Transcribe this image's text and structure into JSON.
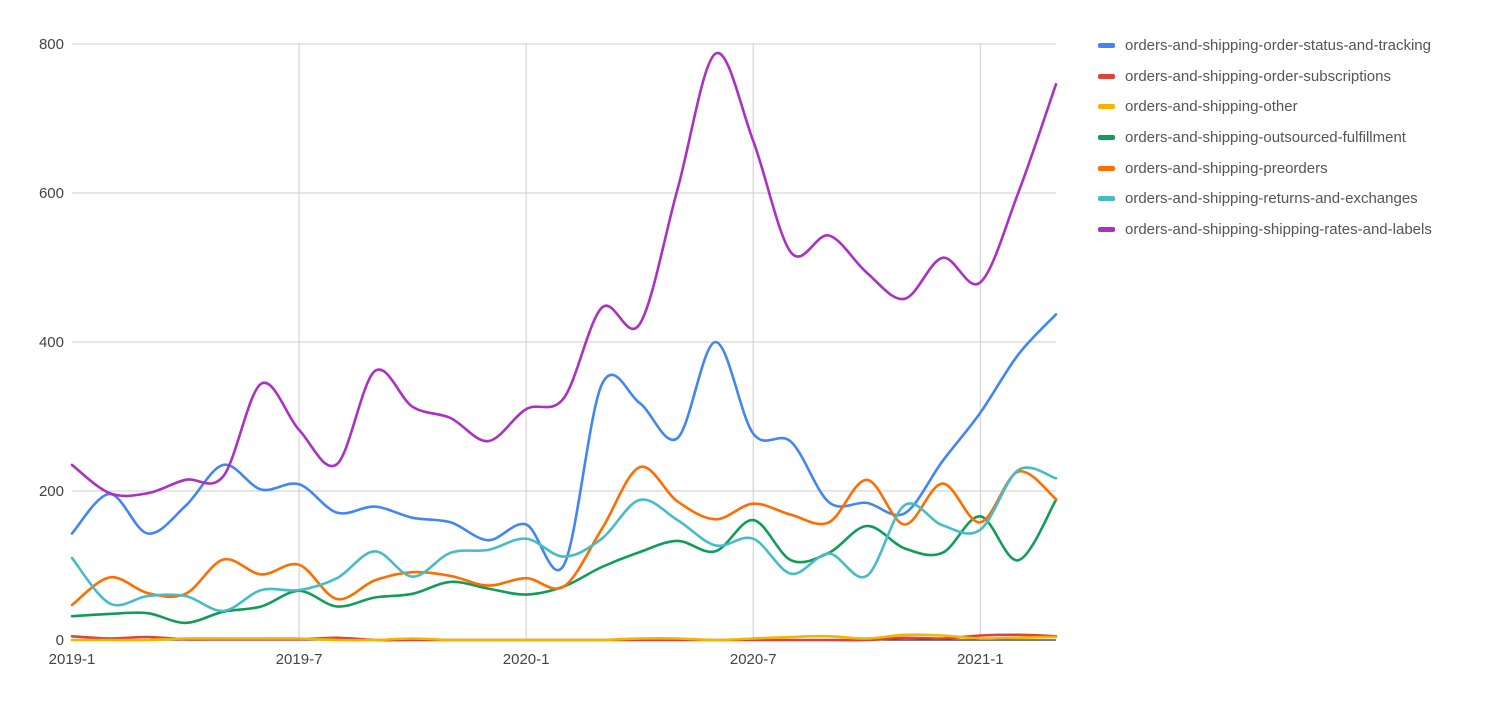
{
  "chart_data": {
    "type": "line",
    "x": [
      "2019-1",
      "2019-2",
      "2019-3",
      "2019-4",
      "2019-5",
      "2019-6",
      "2019-7",
      "2019-8",
      "2019-9",
      "2019-10",
      "2019-11",
      "2019-12",
      "2020-1",
      "2020-2",
      "2020-3",
      "2020-4",
      "2020-5",
      "2020-6",
      "2020-7",
      "2020-8",
      "2020-9",
      "2020-10",
      "2020-11",
      "2020-12",
      "2021-1",
      "2021-2",
      "2021-3"
    ],
    "x_tick_labels": [
      "2019-1",
      "2019-7",
      "2020-1",
      "2020-7",
      "2021-1"
    ],
    "x_tick_indices": [
      0,
      6,
      12,
      18,
      24
    ],
    "y_ticks": [
      "0",
      "200",
      "400",
      "600",
      "800"
    ],
    "ylim": [
      0,
      800
    ],
    "grid": true,
    "legend_position": "right",
    "title": "",
    "xlabel": "",
    "ylabel": "",
    "series": [
      {
        "name": "orders-and-shipping-order-status-and-tracking",
        "color": "#4285F4",
        "values": [
          143,
          196,
          143,
          180,
          235,
          202,
          209,
          171,
          179,
          164,
          158,
          134,
          155,
          101,
          343,
          318,
          271,
          400,
          277,
          266,
          185,
          184,
          170,
          240,
          305,
          383,
          437
        ]
      },
      {
        "name": "orders-and-shipping-order-subscriptions",
        "color": "#DB4437",
        "values": [
          5,
          2,
          4,
          1,
          1,
          1,
          1,
          3,
          0,
          0,
          0,
          0,
          0,
          0,
          0,
          0,
          0,
          0,
          0,
          0,
          0,
          0,
          3,
          2,
          6,
          7,
          5
        ]
      },
      {
        "name": "orders-and-shipping-other",
        "color": "#F4B400",
        "values": [
          0,
          0,
          0,
          2,
          2,
          2,
          2,
          0,
          0,
          2,
          0,
          0,
          0,
          0,
          0,
          2,
          2,
          0,
          2,
          4,
          5,
          2,
          7,
          6,
          2,
          3,
          4
        ]
      },
      {
        "name": "orders-and-shipping-outsourced-fulfillment",
        "color": "#0F9D58",
        "values": [
          32,
          35,
          36,
          23,
          38,
          45,
          66,
          45,
          57,
          62,
          78,
          69,
          61,
          72,
          98,
          118,
          133,
          119,
          161,
          107,
          117,
          153,
          123,
          117,
          166,
          107,
          188
        ]
      },
      {
        "name": "orders-and-shipping-preorders",
        "color": "#FF6D00",
        "values": [
          47,
          84,
          63,
          62,
          108,
          88,
          101,
          55,
          80,
          91,
          86,
          73,
          83,
          72,
          149,
          232,
          186,
          162,
          183,
          168,
          158,
          215,
          155,
          210,
          158,
          226,
          189
        ]
      },
      {
        "name": "orders-and-shipping-returns-and-exchanges",
        "color": "#46BDC6",
        "values": [
          110,
          49,
          59,
          59,
          39,
          67,
          67,
          83,
          119,
          85,
          117,
          121,
          136,
          112,
          136,
          188,
          161,
          127,
          136,
          89,
          116,
          86,
          181,
          154,
          148,
          228,
          217
        ]
      },
      {
        "name": "orders-and-shipping-shipping-rates-and-labels",
        "color": "#AB30C4",
        "values": [
          235,
          197,
          197,
          215,
          220,
          344,
          282,
          236,
          361,
          313,
          298,
          267,
          310,
          325,
          446,
          424,
          605,
          787,
          670,
          520,
          543,
          493,
          458,
          513,
          480,
          600,
          746
        ]
      }
    ]
  }
}
